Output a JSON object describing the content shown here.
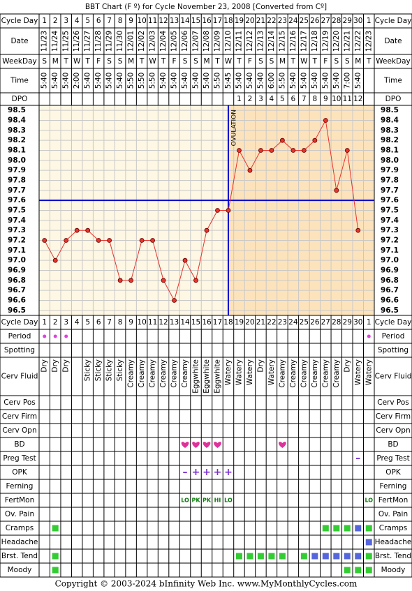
{
  "title": "BBT Chart (F º) for Cycle November 23, 2008  [Converted from Cº]",
  "labels": {
    "cycle_day": "Cycle Day",
    "date": "Date",
    "weekday": "WeekDay",
    "time": "Time",
    "dpo": "DPO",
    "period": "Period",
    "spotting": "Spotting",
    "cerv_fluid": "Cerv Fluid",
    "cerv_pos": "Cerv Pos",
    "cerv_firm": "Cerv Firm",
    "cerv_opn": "Cerv Opn",
    "bd": "BD",
    "preg_test": "Preg Test",
    "opk": "OPK",
    "ferning": "Ferning",
    "fertmon": "FertMon",
    "ov_pain": "Ov. Pain",
    "cramps": "Cramps",
    "headache": "Headache",
    "brst_tend": "Brst. Tend",
    "moody": "Moody"
  },
  "cycle_days": [
    1,
    2,
    3,
    4,
    5,
    6,
    7,
    8,
    9,
    10,
    11,
    12,
    13,
    14,
    15,
    16,
    17,
    18,
    19,
    20,
    21,
    22,
    23,
    24,
    25,
    26,
    27,
    28,
    29,
    30,
    1
  ],
  "dates": [
    "11/23",
    "11/24",
    "11/25",
    "11/26",
    "11/27",
    "11/28",
    "11/29",
    "11/30",
    "12/01",
    "12/02",
    "12/03",
    "12/04",
    "12/05",
    "12/06",
    "12/07",
    "12/08",
    "12/09",
    "12/10",
    "12/11",
    "12/12",
    "12/13",
    "12/14",
    "12/15",
    "12/16",
    "12/17",
    "12/18",
    "12/19",
    "12/20",
    "12/21",
    "12/22",
    "12/23"
  ],
  "weekdays": [
    "S",
    "M",
    "T",
    "W",
    "T",
    "F",
    "S",
    "S",
    "M",
    "T",
    "W",
    "T",
    "F",
    "S",
    "S",
    "M",
    "T",
    "W",
    "T",
    "F",
    "S",
    "S",
    "M",
    "T",
    "W",
    "T",
    "F",
    "S",
    "S",
    "M",
    "T"
  ],
  "times": [
    "5:40",
    "5:40",
    "5:40",
    "2:00",
    "5:40",
    "5:40",
    "5:40",
    "5:40",
    "5:50",
    "5:50",
    "5:50",
    "5:40",
    "5:40",
    "5:40",
    "5:40",
    "5:40",
    "5:50",
    "5:45",
    "5:40",
    "5:40",
    "5:40",
    "6:00",
    "5:50",
    "5:40",
    "5:40",
    "5:40",
    "5:40",
    "5:40",
    "7:00",
    "5:40",
    null
  ],
  "dpo": [
    null,
    null,
    null,
    null,
    null,
    null,
    null,
    null,
    null,
    null,
    null,
    null,
    null,
    null,
    null,
    null,
    null,
    null,
    1,
    2,
    3,
    4,
    5,
    6,
    7,
    8,
    9,
    10,
    11,
    12,
    null
  ],
  "chart": {
    "type": "line",
    "color": "#e8322c",
    "ylim": [
      96.45,
      98.55
    ],
    "yticks": [
      {
        "value": 98.5,
        "label": "98.5"
      },
      {
        "value": 98.4,
        "label": "98.4"
      },
      {
        "value": 98.3,
        "label": "98.3"
      },
      {
        "value": 98.2,
        "label": "98.2"
      },
      {
        "value": 98.1,
        "label": "98.1"
      },
      {
        "value": 98,
        "label": "98.0"
      },
      {
        "value": 97.9,
        "label": "97.9"
      },
      {
        "value": 97.8,
        "label": "97.8"
      },
      {
        "value": 97.7,
        "label": "97.7"
      },
      {
        "value": 97.6,
        "label": "97.6"
      },
      {
        "value": 97.5,
        "label": "97.5"
      },
      {
        "value": 97.4,
        "label": "97.4"
      },
      {
        "value": 97.3,
        "label": "97.3"
      },
      {
        "value": 97.2,
        "label": "97.2"
      },
      {
        "value": 97.1,
        "label": "97.1"
      },
      {
        "value": 97,
        "label": "97.0"
      },
      {
        "value": 96.9,
        "label": "96.9"
      },
      {
        "value": 96.8,
        "label": "96.8"
      },
      {
        "value": 96.7,
        "label": "96.7"
      },
      {
        "value": 96.6,
        "label": "96.6"
      },
      {
        "value": 96.5,
        "label": "96.5"
      }
    ],
    "values": [
      97.2,
      97.0,
      97.2,
      97.3,
      97.3,
      97.2,
      97.2,
      96.8,
      96.8,
      97.2,
      97.2,
      96.8,
      96.6,
      97.0,
      96.8,
      97.3,
      97.5,
      97.5,
      98.1,
      97.9,
      98.1,
      98.1,
      98.2,
      98.1,
      98.1,
      98.2,
      98.4,
      97.7,
      98.1,
      97.3,
      null
    ],
    "coverline": 97.6,
    "ovulation_day": 18,
    "ovulation_label": "OVULATION",
    "grid": true
  },
  "cerv_fluid": [
    "Dry",
    "Dry",
    "Dry",
    null,
    "Sticky",
    "Sticky",
    "Sticky",
    "Sticky",
    "Creamy",
    "Creamy",
    "Creamy",
    "Creamy",
    "Creamy",
    "Creamy",
    "Eggwhite",
    "Eggwhite",
    "Eggwhite",
    "Watery",
    "Watery",
    "Watery",
    "Dry",
    "Watery",
    "Creamy",
    "Creamy",
    "Creamy",
    "Creamy",
    "Creamy",
    "Creamy",
    "Dry",
    "Watery",
    "Watery"
  ],
  "preg_test": [
    null,
    null,
    null,
    null,
    null,
    null,
    null,
    null,
    null,
    null,
    null,
    null,
    null,
    null,
    null,
    null,
    null,
    null,
    null,
    null,
    null,
    null,
    null,
    null,
    null,
    null,
    null,
    null,
    null,
    "–",
    null
  ],
  "opk": [
    null,
    null,
    null,
    null,
    null,
    null,
    null,
    null,
    null,
    null,
    null,
    null,
    null,
    "–",
    "+",
    "+",
    "+",
    "+",
    null,
    null,
    null,
    null,
    null,
    null,
    null,
    null,
    null,
    null,
    null,
    null,
    null
  ],
  "fertmon": [
    null,
    null,
    null,
    null,
    null,
    null,
    null,
    null,
    null,
    null,
    null,
    null,
    null,
    "LO",
    "PK",
    "PK",
    "HI",
    "LO",
    null,
    null,
    null,
    null,
    null,
    null,
    null,
    null,
    null,
    null,
    null,
    null,
    "LO"
  ],
  "footer": "Copyright © 2003-2024 bInfinity Web Inc.    www.MyMonthlyCycles.com"
}
